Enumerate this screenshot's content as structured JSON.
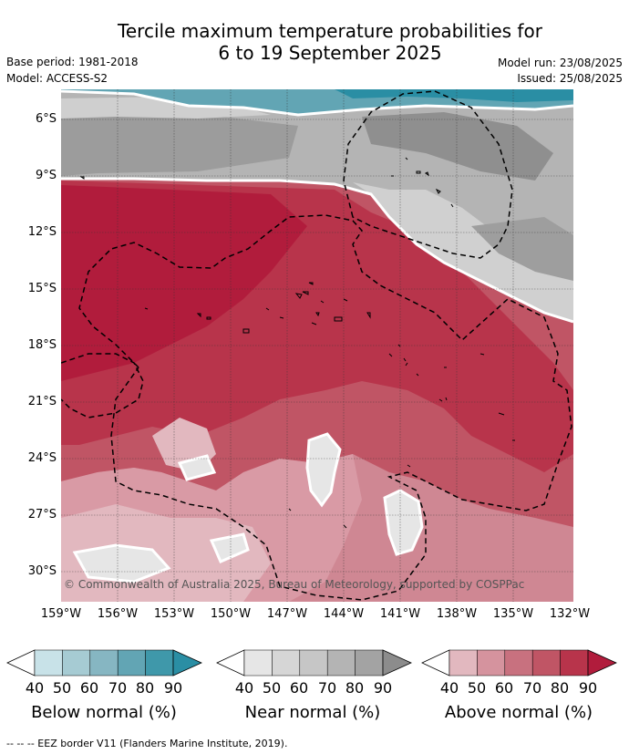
{
  "header": {
    "title_line1": "Tercile maximum temperature probabilities for",
    "title_line2": "6 to 19 September 2025",
    "base_period": "Base period: 1981-2018",
    "model": "Model: ACCESS-S2",
    "model_run": "Model run: 23/08/2025",
    "issued": "Issued: 25/08/2025"
  },
  "map": {
    "lat_labels": [
      "6°S",
      "9°S",
      "12°S",
      "15°S",
      "18°S",
      "21°S",
      "24°S",
      "27°S",
      "30°S"
    ],
    "lon_labels": [
      "159°W",
      "156°W",
      "153°W",
      "150°W",
      "147°W",
      "144°W",
      "141°W",
      "138°W",
      "135°W",
      "132°W"
    ],
    "copyright": "© Commonwealth of Australia 2025, Bureau of Meteorology, supported by COSPPac"
  },
  "colorbars": [
    {
      "ticks": [
        "40",
        "50",
        "60",
        "70",
        "80",
        "90"
      ],
      "label": "Below normal (%)",
      "colors": [
        "#ffffff",
        "#c8e2e8",
        "#a6cbd3",
        "#86b6c2",
        "#62a5b4",
        "#3f98aa",
        "#2a8ea4"
      ]
    },
    {
      "ticks": [
        "40",
        "50",
        "60",
        "70",
        "80",
        "90"
      ],
      "label": "Near normal (%)",
      "colors": [
        "#ffffff",
        "#e6e6e6",
        "#d6d6d6",
        "#c6c6c6",
        "#b4b4b4",
        "#a3a3a3",
        "#8c8c8c"
      ]
    },
    {
      "ticks": [
        "40",
        "50",
        "60",
        "70",
        "80",
        "90"
      ],
      "label": "Above normal (%)",
      "colors": [
        "#ffffff",
        "#e2b8bf",
        "#d5939e",
        "#c8717f",
        "#c05565",
        "#b8344b",
        "#b11c3c"
      ]
    }
  ],
  "footnote": "--  --  -- EEZ border V11 (Flanders Marine Institute, 2019)."
}
